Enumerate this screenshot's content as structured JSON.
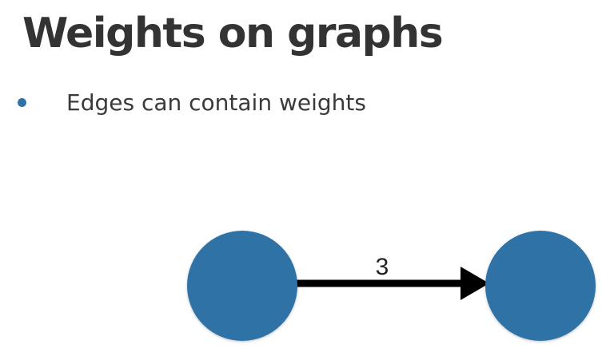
{
  "slide": {
    "title": "Weights on graphs",
    "bullets": [
      "Edges can contain weights"
    ]
  },
  "graph": {
    "nodes": [
      {
        "id": "node-a"
      },
      {
        "id": "node-b"
      }
    ],
    "edges": [
      {
        "from": "node-a",
        "to": "node-b",
        "weight": "3",
        "directed": true
      }
    ],
    "colors": {
      "node_fill": "#2e72a6",
      "edge": "#000000",
      "bullet": "#2e72a6",
      "title": "#333333"
    }
  }
}
